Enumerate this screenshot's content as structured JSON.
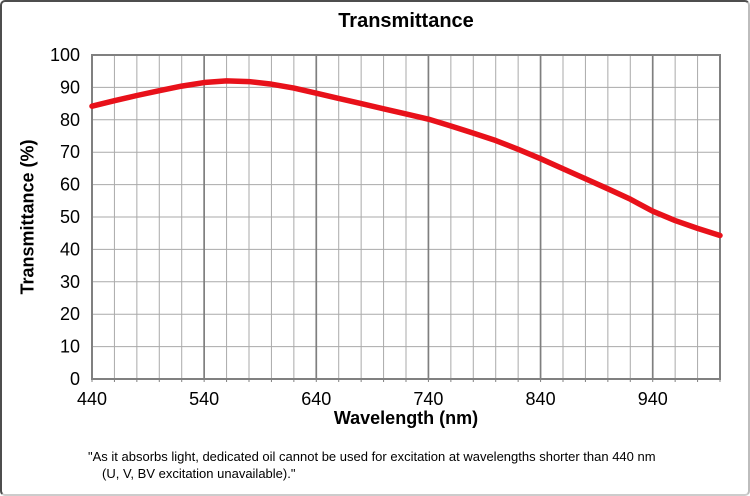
{
  "colors": {
    "curve_red": "#e8111a",
    "grid_minor": "#aaaaaa",
    "grid_major": "#7f7f7f",
    "axis": "#808080",
    "text": "#000000",
    "frame_border": "#4d4d4d"
  },
  "chart_data": {
    "type": "line",
    "title": "Transmittance",
    "xlabel": "Wavelength (nm)",
    "ylabel": "Transmittance (%)",
    "xlim": [
      440,
      1000
    ],
    "ylim": [
      0,
      100
    ],
    "x_minor_step": 20,
    "x_major_step": 100,
    "x_ticks_labeled": [
      440,
      540,
      640,
      740,
      840,
      940
    ],
    "y_tick_step": 10,
    "y_ticks": [
      0,
      10,
      20,
      30,
      40,
      50,
      60,
      70,
      80,
      90,
      100
    ],
    "grid": true,
    "legend": "none",
    "series": [
      {
        "name": "Transmittance",
        "color": "#e8111a",
        "x": [
          440,
          460,
          480,
          500,
          520,
          540,
          560,
          580,
          600,
          620,
          640,
          660,
          680,
          700,
          720,
          740,
          760,
          780,
          800,
          820,
          840,
          860,
          880,
          900,
          920,
          940,
          960,
          980,
          1000
        ],
        "y": [
          84.2,
          85.9,
          87.5,
          89.0,
          90.4,
          91.5,
          92.0,
          91.8,
          91.0,
          89.8,
          88.2,
          86.6,
          85.0,
          83.4,
          81.8,
          80.2,
          78.1,
          75.9,
          73.6,
          70.9,
          68.0,
          64.9,
          61.8,
          58.7,
          55.5,
          51.8,
          48.9,
          46.5,
          44.3
        ]
      }
    ]
  },
  "caption": {
    "line1": "\"As it absorbs light, dedicated oil cannot be used for excitation at wavelengths shorter than 440 nm",
    "line2": "(U, V, BV excitation unavailable).\""
  }
}
